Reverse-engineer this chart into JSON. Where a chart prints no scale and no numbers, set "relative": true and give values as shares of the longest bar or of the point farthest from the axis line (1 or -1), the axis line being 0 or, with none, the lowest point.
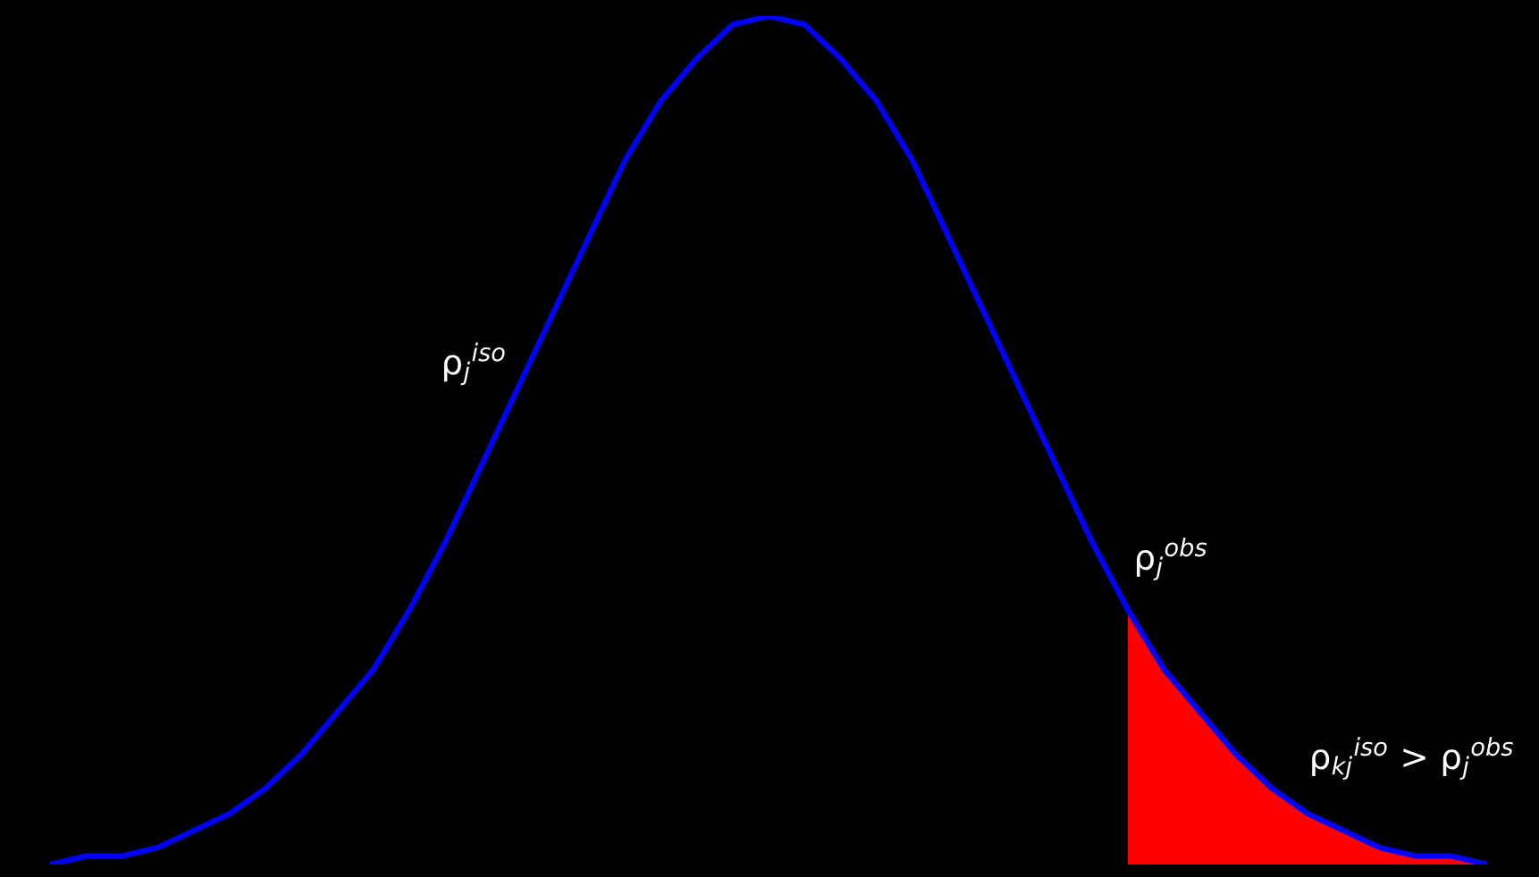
{
  "chart_data": {
    "type": "line",
    "relative": true,
    "categories": [
      null,
      null,
      null,
      null,
      null,
      null,
      null,
      null,
      null,
      null,
      null,
      null,
      null,
      null,
      null,
      null,
      null,
      null,
      null,
      null,
      null,
      null,
      null,
      null,
      null,
      null,
      null,
      null,
      null,
      null,
      null,
      null,
      null,
      null,
      null,
      null,
      null,
      null,
      null,
      null,
      null
    ],
    "series": [
      {
        "type": "area",
        "color": "#ff0000",
        "values": [
          null,
          null,
          null,
          null,
          null,
          null,
          null,
          null,
          null,
          null,
          null,
          null,
          null,
          null,
          null,
          null,
          null,
          null,
          null,
          null,
          null,
          null,
          null,
          null,
          null,
          null,
          null,
          null,
          null,
          null,
          0.3,
          0.23,
          0.18,
          0.13,
          0.09,
          0.06,
          0.04,
          0.02,
          0.01,
          0.01,
          0
        ]
      },
      {
        "color": "#0000ff",
        "values": [
          0,
          0.01,
          0.01,
          0.02,
          0.04,
          0.06,
          0.09,
          0.13,
          0.18,
          0.23,
          0.3,
          0.38,
          0.47,
          0.56,
          0.65,
          0.74,
          0.83,
          0.9,
          0.95,
          0.99,
          1,
          0.99,
          0.95,
          0.9,
          0.83,
          0.74,
          0.65,
          0.56,
          0.47,
          0.38,
          0.3,
          0.23,
          0.18,
          0.13,
          0.09,
          0.06,
          0.04,
          0.02,
          0.01,
          0.01,
          0
        ]
      }
    ],
    "annotations": [
      "ρ$_{j}$$^{iso}$",
      "ρ$_{j}$$^{obs}$",
      "ρ$_{kj}$$^{iso}$ > ρ$_{j}$$^{obs}$"
    ]
  }
}
